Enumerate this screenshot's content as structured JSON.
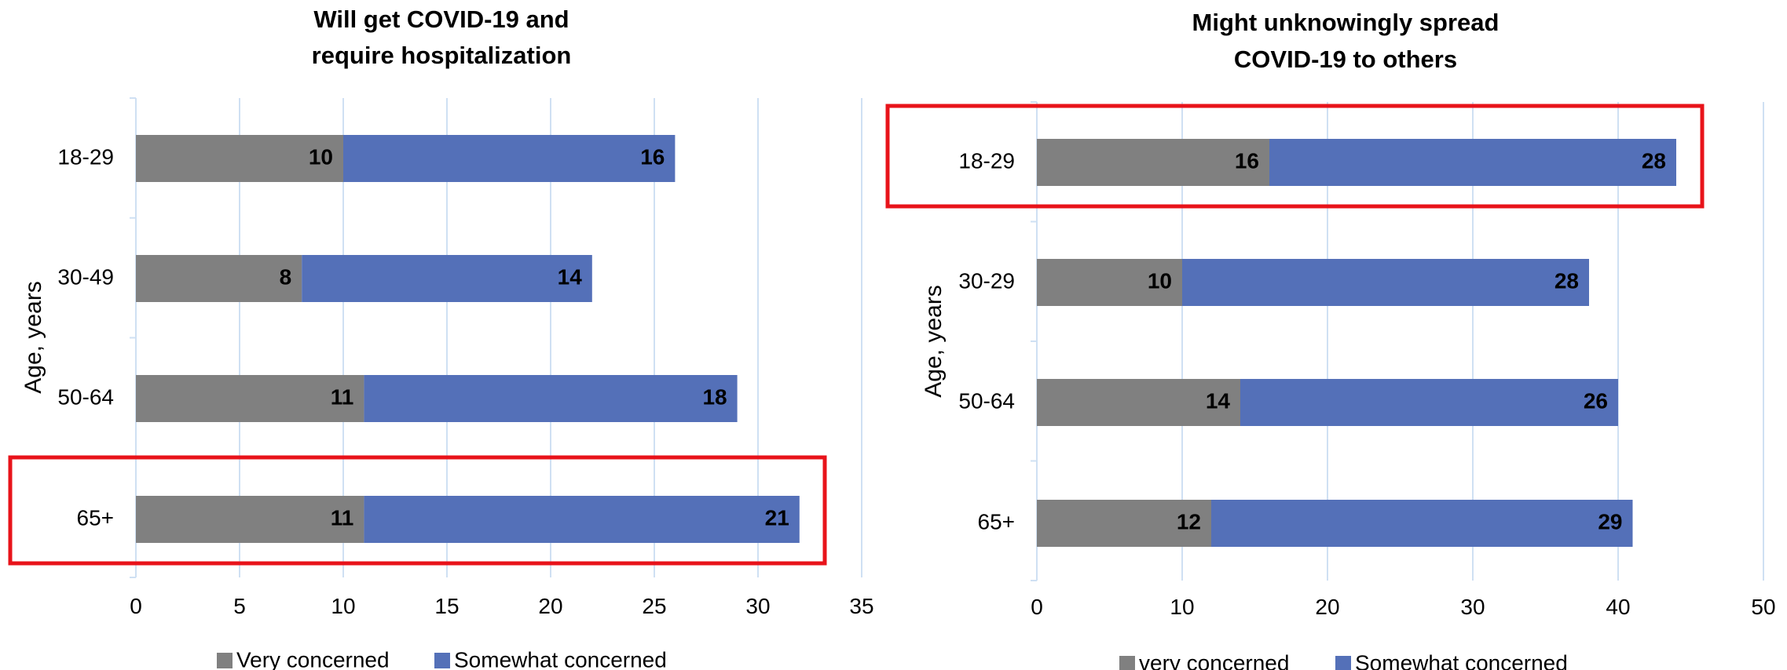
{
  "chart_data": [
    {
      "type": "bar",
      "orientation": "horizontal",
      "stacked": true,
      "title": [
        "Will get COVID-19 and",
        "require hospitalization"
      ],
      "ylabel": "Age, years",
      "xlabel": "",
      "categories": [
        "18-29",
        "30-49",
        "50-64",
        "65+"
      ],
      "series": [
        {
          "name": "Very concerned",
          "color": "#808080",
          "values": [
            10,
            8,
            11,
            11
          ]
        },
        {
          "name": "Somewhat concerned",
          "color": "#5470b8",
          "values": [
            16,
            14,
            18,
            21
          ]
        }
      ],
      "xlim": [
        0,
        35
      ],
      "xticks": [
        "0",
        "5",
        "10",
        "15",
        "20",
        "25",
        "30",
        "35"
      ],
      "grid": "vertical",
      "legend": "bottom",
      "highlighted_category": "65+",
      "highlight_color": "#e8131a"
    },
    {
      "type": "bar",
      "orientation": "horizontal",
      "stacked": true,
      "title": [
        "Might unknowingly spread",
        "COVID-19 to others"
      ],
      "ylabel": "Age, years",
      "xlabel": "",
      "categories": [
        "18-29",
        "30-29",
        "50-64",
        "65+"
      ],
      "series": [
        {
          "name": "very concerned",
          "color": "#808080",
          "values": [
            16,
            10,
            14,
            12
          ]
        },
        {
          "name": "Somewhat concerned",
          "color": "#5470b8",
          "values": [
            28,
            28,
            26,
            29
          ]
        }
      ],
      "xlim": [
        0,
        50
      ],
      "xticks": [
        "0",
        "10",
        "20",
        "30",
        "40",
        "50"
      ],
      "grid": "vertical",
      "legend": "bottom",
      "highlighted_category": "18-29",
      "highlight_color": "#e8131a"
    }
  ]
}
